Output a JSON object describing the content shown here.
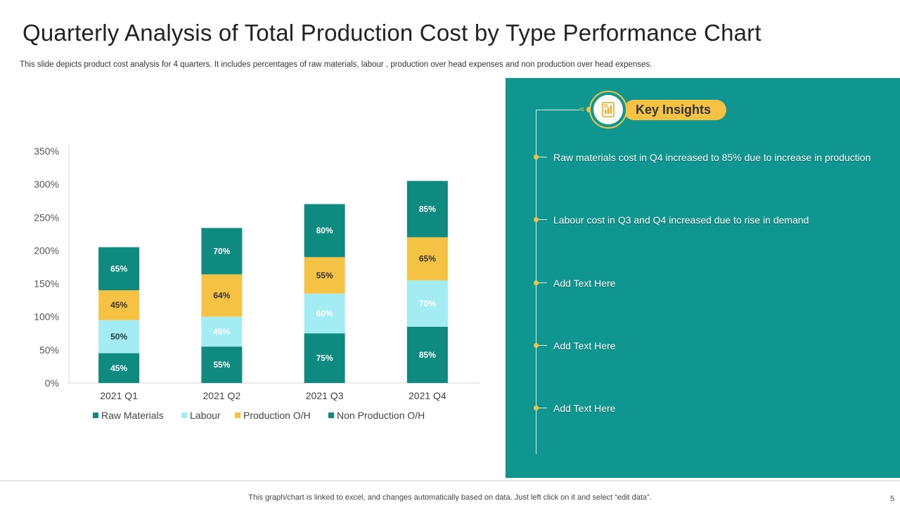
{
  "title": "Quarterly Analysis of Total Production Cost by Type Performance Chart",
  "subtitle": "This slide depicts product cost analysis for 4 quarters. It includes percentages of raw materials, labour , production over head expenses and non production over head expenses.",
  "colors": {
    "raw_materials": "#0f8a80",
    "labour": "#a4ecf3",
    "production_oh": "#f6c244",
    "non_production_oh": "#0f8a80",
    "panel": "#0f9690",
    "accent": "#f6c244"
  },
  "chart_data": {
    "type": "bar",
    "stacked": true,
    "title": "",
    "xlabel": "",
    "ylabel": "",
    "categories": [
      "2021 Q1",
      "2021 Q2",
      "2021 Q3",
      "2021 Q4"
    ],
    "ylim": [
      0,
      350
    ],
    "yticks": [
      0,
      50,
      100,
      150,
      200,
      250,
      300,
      350
    ],
    "ytick_labels": [
      "0%",
      "50%",
      "100%",
      "150%",
      "200%",
      "250%",
      "300%",
      "350%"
    ],
    "series": [
      {
        "name": "Raw Materials",
        "values": [
          45,
          55,
          75,
          85
        ],
        "labels": [
          "45%",
          "55%",
          "75%",
          "85%"
        ]
      },
      {
        "name": "Labour",
        "values": [
          50,
          45,
          60,
          70
        ],
        "labels": [
          "50%",
          "45%",
          "60%",
          "70%"
        ]
      },
      {
        "name": "Production O/H",
        "values": [
          45,
          64,
          55,
          65
        ],
        "labels": [
          "45%",
          "64%",
          "55%",
          "65%"
        ]
      },
      {
        "name": "Non Production O/H",
        "values": [
          65,
          70,
          80,
          85
        ],
        "labels": [
          "65%",
          "70%",
          "80%",
          "85%"
        ]
      }
    ],
    "legend_position": "bottom"
  },
  "insights": {
    "heading": "Key Insights",
    "icon": "report-chart-icon",
    "items": [
      "Raw materials cost in Q4 increased to 85% due to increase in production",
      "Labour cost in Q3 and Q4 increased due to rise in demand",
      "Add Text Here",
      "Add Text Here",
      "Add Text Here"
    ]
  },
  "footer": "This graph/chart is linked to excel,  and changes automatically based on data. Just left click on it and select “edit data”.",
  "page_number": "5"
}
